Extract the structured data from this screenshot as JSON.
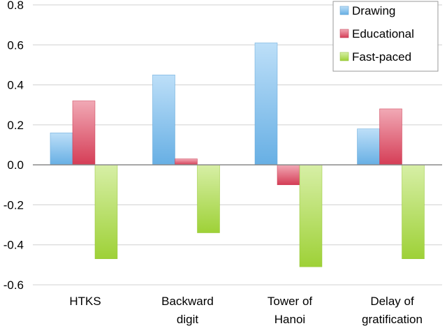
{
  "chart_data": {
    "type": "bar",
    "title": "",
    "xlabel": "",
    "ylabel": "",
    "categories": [
      [
        "HTKS"
      ],
      [
        "Backward",
        "digit"
      ],
      [
        "Tower of",
        "Hanoi"
      ],
      [
        "Delay of",
        "gratification"
      ]
    ],
    "series": [
      {
        "name": "Drawing",
        "values": [
          0.16,
          0.45,
          0.61,
          0.18
        ],
        "color": "#6cb8f0"
      },
      {
        "name": "Educational",
        "values": [
          0.32,
          0.03,
          -0.1,
          0.28
        ],
        "color": "#e0405a"
      },
      {
        "name": "Fast-paced",
        "values": [
          -0.47,
          -0.34,
          -0.51,
          -0.47
        ],
        "color": "#a6dc3a"
      }
    ],
    "ylim": [
      -0.6,
      0.8
    ],
    "yticks": [
      "0.8",
      "0.6",
      "0.4",
      "0.2",
      "0.0",
      "-0.2",
      "-0.4",
      "-0.6"
    ],
    "ytick_values": [
      0.8,
      0.6,
      0.4,
      0.2,
      0.0,
      -0.2,
      -0.4,
      -0.6
    ],
    "grid": true,
    "legend_position": "top-right"
  }
}
